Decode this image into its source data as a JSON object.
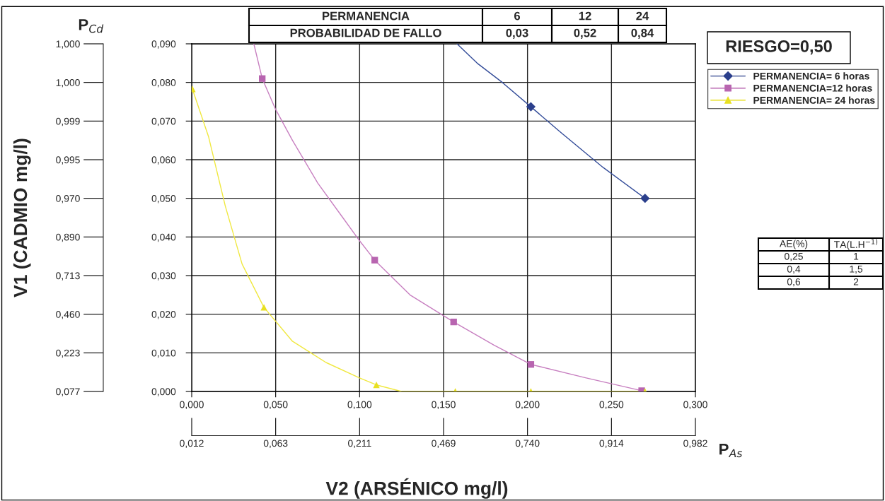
{
  "chart_data": {
    "type": "line",
    "xlabel": "V2 (ARSÉNICO mg/l)",
    "y2label": "P$_{Cd}$",
    "x2label": "P$_{As}$",
    "xlim": [
      0,
      0.3
    ],
    "xticks": [
      {
        "value": 0,
        "label": "0,000"
      },
      {
        "value": 0.05,
        "label": "0,050"
      },
      {
        "value": 0.1,
        "label": "0,100"
      },
      {
        "value": 0.15,
        "label": "0,150"
      },
      {
        "value": 0.2,
        "label": "0,200"
      },
      {
        "value": 0.25,
        "label": "0,250"
      },
      {
        "value": 0.3,
        "label": "0,300"
      }
    ],
    "ylim": [
      0,
      0.09
    ],
    "yticks": [
      {
        "value": 0,
        "label": "0,000"
      },
      {
        "value": 0.01,
        "label": "0,010"
      },
      {
        "value": 0.02,
        "label": "0,020"
      },
      {
        "value": 0.03,
        "label": "0,030"
      },
      {
        "value": 0.04,
        "label": "0,040"
      },
      {
        "value": 0.05,
        "label": "0,050"
      },
      {
        "value": 0.06,
        "label": "0,060"
      },
      {
        "value": 0.07,
        "label": "0,070"
      },
      {
        "value": 0.08,
        "label": "0,080"
      },
      {
        "value": 0.09,
        "label": "0,090"
      }
    ],
    "grid": true,
    "legend": "right",
    "line_style": "solid",
    "series": [
      {
        "color": "#334c99",
        "marker": "none",
        "x": [
          0.158,
          0.17,
          0.185,
          0.202,
          0.22,
          0.245,
          0.27
        ],
        "values": [
          0.09,
          0.085,
          0.08,
          0.0737,
          0.067,
          0.058,
          0.05
        ]
      },
      {
        "color": "#c77fc0",
        "marker": "none",
        "x": [
          0.037,
          0.042,
          0.05,
          0.06,
          0.075,
          0.09,
          0.1,
          0.109,
          0.13,
          0.156,
          0.18,
          0.202,
          0.235,
          0.268
        ],
        "values": [
          0.09,
          0.081,
          0.073,
          0.065,
          0.054,
          0.045,
          0.039,
          0.034,
          0.025,
          0.018,
          0.012,
          0.007,
          0.0035,
          0.0002
        ]
      },
      {
        "color": "#f0e840",
        "marker": "none",
        "x": [
          0.0004,
          0.01,
          0.02,
          0.03,
          0.043,
          0.06,
          0.08,
          0.1,
          0.11,
          0.125,
          0.157,
          0.202,
          0.27
        ],
        "values": [
          0.0783,
          0.066,
          0.048,
          0.033,
          0.0218,
          0.013,
          0.0075,
          0.0035,
          0.0017,
          0,
          0,
          0,
          0
        ]
      },
      {
        "type": "scatter",
        "name": "PERMANENCIA= 6 horas",
        "color": "#2b3f8c",
        "marker": "diamond",
        "x": [
          0.202,
          0.27
        ],
        "values": [
          0.0737,
          0.05
        ]
      },
      {
        "type": "scatter",
        "name": "PERMANENCIA=12 horas",
        "color": "#b865b0",
        "marker": "square",
        "x": [
          0.042,
          0.109,
          0.156,
          0.202,
          0.268
        ],
        "values": [
          0.081,
          0.034,
          0.018,
          0.007,
          0.0002
        ]
      },
      {
        "type": "scatter",
        "name": "PERMANENCIA= 24 horas",
        "color": "#e8e020",
        "marker": "triangle",
        "x": [
          0.0004,
          0.043,
          0.11,
          0.157,
          0.202,
          0.27
        ],
        "values": [
          0.0783,
          0.0218,
          0.0017,
          0,
          0,
          0
        ]
      }
    ],
    "annotations": [
      "PERMANENCIA",
      "6",
      "12",
      "24",
      "PROBABILIDAD DE FALLO",
      "0,03",
      "0,52",
      "0,84",
      "RIESGO=0,50",
      "AE(%)",
      "TA(L.H$^{−1)}$",
      "0,25",
      "1",
      "0,4",
      "1,5",
      "0,6",
      "2",
      "0,077",
      "0,223",
      "0,460",
      "0,713",
      "0,890",
      "0,970",
      "0,995",
      "0,999",
      "1,000",
      "1,000",
      "0,012",
      "0,063",
      "0,211",
      "0,469",
      "0,740",
      "0,914",
      "0,982",
      "V1 (CADMIO mg/l)"
    ]
  }
}
